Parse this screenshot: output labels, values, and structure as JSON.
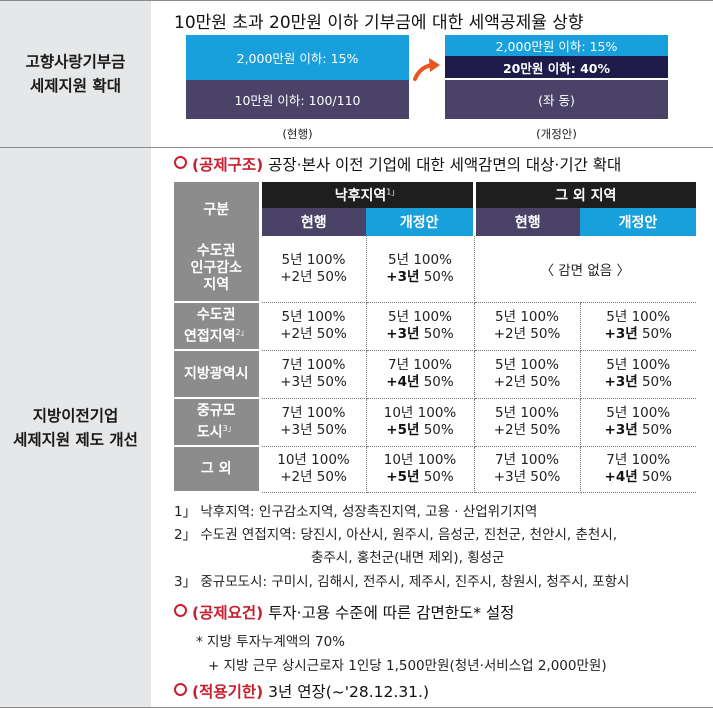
{
  "section1": {
    "label_line1": "고향사랑기부금",
    "label_line2": "세제지원 확대",
    "heading": "10만원 초과 20만원 이하 기부금에 대한 세액공제율 상향",
    "current": {
      "top_bar": "2,000만원 이하: 15%",
      "bottom_bar": "10만원 이하: 100/110",
      "caption": "(현행)"
    },
    "proposed": {
      "top_bar": "2,000만원 이하: 15%",
      "middle_bar": "20만원 이하: 40%",
      "bottom_bar": "(좌 동)",
      "caption": "(개정안)"
    }
  },
  "section2": {
    "label_line1": "지방이전기업",
    "label_line2": "세제지원 제도 개선",
    "bullet1": {
      "tag": "(공제구조)",
      "text": "공장·본사 이전 기업에 대한 세액감면의 대상·기간 확대"
    },
    "table": {
      "col_header": "구분",
      "group1": "낙후지역",
      "group1_note": "1」",
      "group2": "그 외 지역",
      "sub_current": "현행",
      "sub_proposed": "개정안",
      "no_reduction": "〈 감면 없음 〉",
      "rows": [
        {
          "label1": "수도권",
          "label2": "인구감소",
          "label3": "지역",
          "note": "",
          "c1a": "5년 100%",
          "c1b": "+2년 50%",
          "c2a": "5년 100%",
          "c2b_bold": "+3년",
          "c2b_rest": " 50%"
        },
        {
          "label1": "수도권",
          "label2": "연접지역",
          "label3": "",
          "note": "2」",
          "c1a": "5년 100%",
          "c1b": "+2년 50%",
          "c2a": "5년 100%",
          "c2b_bold": "+3년",
          "c2b_rest": " 50%",
          "c3a": "5년 100%",
          "c3b": "+2년 50%",
          "c4a": "5년 100%",
          "c4b_bold": "+3년",
          "c4b_rest": " 50%"
        },
        {
          "label1": "지방광역시",
          "label2": "",
          "label3": "",
          "note": "",
          "c1a": "7년 100%",
          "c1b": "+3년 50%",
          "c2a": "7년 100%",
          "c2b_bold": "+4년",
          "c2b_rest": " 50%",
          "c3a": "5년 100%",
          "c3b": "+2년 50%",
          "c4a": "5년 100%",
          "c4b_bold": "+3년",
          "c4b_rest": " 50%"
        },
        {
          "label1": "중규모",
          "label2": "도시",
          "label3": "",
          "note": "3」",
          "c1a": "7년 100%",
          "c1b": "+3년 50%",
          "c2a": "10년 100%",
          "c2b_bold": "+5년",
          "c2b_rest": " 50%",
          "c3a": "5년 100%",
          "c3b": "+2년 50%",
          "c4a": "5년 100%",
          "c4b_bold": "+3년",
          "c4b_rest": " 50%"
        },
        {
          "label1": "그 외",
          "label2": "",
          "label3": "",
          "note": "",
          "c1a": "10년 100%",
          "c1b": "+2년 50%",
          "c2a": "10년 100%",
          "c2b_bold": "+5년",
          "c2b_rest": " 50%",
          "c3a": "7년 100%",
          "c3b": "+3년 50%",
          "c4a": "7년 100%",
          "c4b_bold": "+4년",
          "c4b_rest": " 50%"
        }
      ]
    },
    "footnotes": [
      "1」 낙후지역: 인구감소지역, 성장촉진지역, 고용 · 산업위기지역",
      "2」 수도권 연접지역: 당진시, 아산시, 원주시, 음성군, 진천군, 천안시, 춘천시,",
      "충주시, 홍천군(내면 제외), 횡성군",
      "3」 중규모도시: 구미시, 김해시, 전주시, 제주시, 진주시, 창원시, 청주시, 포항시"
    ],
    "bullet2": {
      "tag": "(공제요건)",
      "text": "투자·고용 수준에 따른 감면한도* 설정"
    },
    "sub_note1": "* 지방 투자누계액의 70%",
    "sub_note2": "+ 지방 근무 상시근로자 1인당 1,500만원(청년·서비스업 2,000만원)",
    "bullet3": {
      "tag": "(적용기한)",
      "text": "3년 연장(~'28.12.31.)"
    }
  },
  "colors": {
    "accent_red": "#c8202f",
    "blue": "#18a0dc",
    "purple": "#4a4367",
    "navy": "#1e1a4a",
    "gray": "#8c8c8c"
  }
}
